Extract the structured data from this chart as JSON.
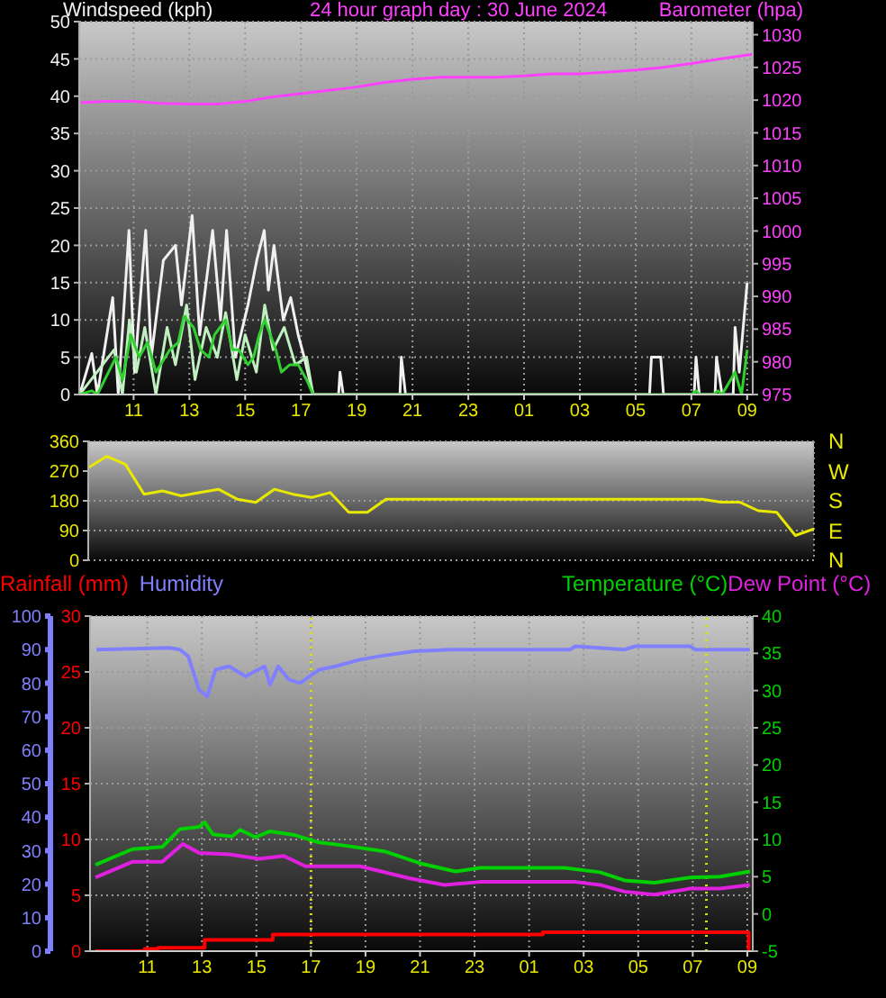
{
  "chart_data": [
    {
      "type": "line",
      "title": "24 hour graph day : 30 June 2024",
      "ylabel": "Windspeed (kph)",
      "y2label": "Barometer (hpa)",
      "xlim": [
        "2024-06-30T09:03",
        "2024-07-01T09:12"
      ],
      "xticks": [
        {
          "value": "2024-06-30T11:00",
          "label": "11"
        },
        {
          "value": "2024-06-30T13:00",
          "label": "13"
        },
        {
          "value": "2024-06-30T15:00",
          "label": "15"
        },
        {
          "value": "2024-06-30T17:00",
          "label": "17"
        },
        {
          "value": "2024-06-30T19:00",
          "label": "19"
        },
        {
          "value": "2024-06-30T21:00",
          "label": "21"
        },
        {
          "value": "2024-06-30T23:00",
          "label": "23"
        },
        {
          "value": "2024-07-01T01:00",
          "label": "01"
        },
        {
          "value": "2024-07-01T03:00",
          "label": "03"
        },
        {
          "value": "2024-07-01T05:00",
          "label": "05"
        },
        {
          "value": "2024-07-01T07:00",
          "label": "07"
        },
        {
          "value": "2024-07-01T09:00",
          "label": "09"
        }
      ],
      "ylim": [
        0,
        50
      ],
      "yticks": [
        0,
        5,
        10,
        15,
        20,
        25,
        30,
        35,
        40,
        45,
        50
      ],
      "y2lim": [
        975,
        1032
      ],
      "y2ticks": [
        975,
        980,
        985,
        990,
        995,
        1000,
        1005,
        1010,
        1015,
        1020,
        1025,
        1030
      ],
      "grid": true,
      "marker": "none",
      "line_style": "solid",
      "series": [
        {
          "color": "#f0f0f0",
          "x": [
            "2024-06-30T09:04",
            "2024-06-30T09:30",
            "2024-06-30T09:42",
            "2024-06-30T10:15",
            "2024-06-30T10:27",
            "2024-06-30T10:50",
            "2024-06-30T11:02",
            "2024-06-30T11:26",
            "2024-06-30T11:38",
            "2024-06-30T12:04",
            "2024-06-30T12:30",
            "2024-06-30T12:43",
            "2024-06-30T13:06",
            "2024-06-30T13:22",
            "2024-06-30T13:50",
            "2024-06-30T14:07",
            "2024-06-30T14:20",
            "2024-06-30T14:39",
            "2024-06-30T15:06",
            "2024-06-30T15:25",
            "2024-06-30T15:41",
            "2024-06-30T15:50",
            "2024-06-30T16:02",
            "2024-06-30T16:22",
            "2024-06-30T16:38",
            "2024-06-30T16:54",
            "2024-06-30T17:07",
            "2024-06-30T17:26",
            "2024-06-30T18:21",
            "2024-06-30T18:24",
            "2024-06-30T18:31",
            "2024-06-30T20:33",
            "2024-06-30T20:36",
            "2024-06-30T20:45",
            "2024-07-01T05:30",
            "2024-07-01T05:34",
            "2024-07-01T05:54",
            "2024-07-01T06:00",
            "2024-07-01T07:06",
            "2024-07-01T07:10",
            "2024-07-01T07:17",
            "2024-07-01T07:51",
            "2024-07-01T07:54",
            "2024-07-01T08:06",
            "2024-07-01T08:30",
            "2024-07-01T08:34",
            "2024-07-01T08:43",
            "2024-07-01T09:00"
          ],
          "values": [
            0,
            5.5,
            0,
            13,
            0,
            22,
            3,
            22,
            5,
            18,
            20,
            12,
            24,
            8,
            22,
            10,
            22,
            5,
            12,
            18,
            22,
            14,
            20,
            10,
            13,
            8,
            5,
            0,
            0,
            3,
            0,
            0,
            5,
            0,
            0,
            5,
            5,
            0,
            0,
            5,
            0,
            0,
            5,
            0,
            0,
            9,
            3,
            15
          ]
        },
        {
          "color": "#c0f0c0",
          "x": [
            "2024-06-30T09:04",
            "2024-06-30T10:18",
            "2024-06-30T10:36",
            "2024-06-30T10:51",
            "2024-06-30T11:06",
            "2024-06-30T11:24",
            "2024-06-30T11:48",
            "2024-06-30T12:12",
            "2024-06-30T12:30",
            "2024-06-30T12:54",
            "2024-06-30T13:12",
            "2024-06-30T13:36",
            "2024-06-30T14:00",
            "2024-06-30T14:18",
            "2024-06-30T14:42",
            "2024-06-30T15:00",
            "2024-06-30T15:24",
            "2024-06-30T15:42",
            "2024-06-30T16:00",
            "2024-06-30T16:24",
            "2024-06-30T16:48",
            "2024-06-30T17:12",
            "2024-06-30T17:26"
          ],
          "values": [
            0,
            6,
            0,
            10,
            3,
            9,
            0,
            9,
            4,
            12,
            2,
            9,
            5,
            11,
            2,
            8,
            3,
            12,
            6,
            9,
            4,
            5,
            0
          ]
        },
        {
          "color": "#30d030",
          "x": [
            "2024-06-30T09:04",
            "2024-06-30T09:30",
            "2024-06-30T09:42",
            "2024-06-30T10:22",
            "2024-06-30T10:36",
            "2024-06-30T10:54",
            "2024-06-30T11:12",
            "2024-06-30T11:30",
            "2024-06-30T11:48",
            "2024-06-30T12:18",
            "2024-06-30T12:36",
            "2024-06-30T12:48",
            "2024-06-30T13:09",
            "2024-06-30T13:24",
            "2024-06-30T13:42",
            "2024-06-30T13:54",
            "2024-06-30T14:18",
            "2024-06-30T14:33",
            "2024-06-30T14:46",
            "2024-06-30T15:06",
            "2024-06-30T15:18",
            "2024-06-30T15:30",
            "2024-06-30T15:42",
            "2024-06-30T15:54",
            "2024-06-30T16:06",
            "2024-06-30T16:18",
            "2024-06-30T16:36",
            "2024-06-30T16:54",
            "2024-06-30T17:12",
            "2024-06-30T17:26",
            "2024-07-01T07:00",
            "2024-07-01T07:10",
            "2024-07-01T07:18",
            "2024-07-01T07:48",
            "2024-07-01T07:57",
            "2024-07-01T08:06",
            "2024-07-01T08:34",
            "2024-07-01T08:48",
            "2024-07-01T09:00"
          ],
          "values": [
            0,
            0.5,
            0,
            5,
            2,
            8,
            5,
            7,
            3,
            6,
            7,
            10.5,
            9,
            6,
            5,
            8,
            10,
            6,
            6,
            4,
            5,
            8,
            10,
            8,
            6,
            3,
            4,
            4,
            2,
            0,
            0,
            0.5,
            0,
            0,
            0.5,
            0,
            3,
            0,
            6
          ]
        },
        {
          "color": "#ff40ff",
          "axis": "y2",
          "x": [
            "2024-06-30T09:06",
            "2024-06-30T10:00",
            "2024-06-30T11:00",
            "2024-06-30T12:00",
            "2024-06-30T13:00",
            "2024-06-30T14:00",
            "2024-06-30T15:00",
            "2024-06-30T16:00",
            "2024-06-30T17:00",
            "2024-06-30T18:00",
            "2024-06-30T19:00",
            "2024-06-30T20:00",
            "2024-06-30T21:00",
            "2024-06-30T22:00",
            "2024-06-30T23:00",
            "2024-07-01T00:00",
            "2024-07-01T01:00",
            "2024-07-01T02:00",
            "2024-07-01T03:00",
            "2024-07-01T04:00",
            "2024-07-01T05:00",
            "2024-07-01T06:00",
            "2024-07-01T07:00",
            "2024-07-01T08:00",
            "2024-07-01T09:12"
          ],
          "values": [
            1019.6,
            1019.8,
            1019.8,
            1019.5,
            1019.4,
            1019.4,
            1019.8,
            1020.5,
            1021,
            1021.5,
            1022,
            1022.7,
            1023.2,
            1023.5,
            1023.5,
            1023.5,
            1023.7,
            1024,
            1024,
            1024.3,
            1024.6,
            1025,
            1025.6,
            1026.3,
            1027
          ]
        }
      ]
    },
    {
      "type": "line",
      "tick_labels": "y",
      "categories": [
        null,
        null,
        null,
        null,
        null,
        null,
        null,
        null,
        null,
        null,
        null,
        null,
        null,
        null,
        null,
        null,
        null,
        null,
        null,
        null,
        null,
        null,
        null,
        null,
        null,
        null,
        null,
        null,
        null,
        null,
        null,
        null,
        null,
        null,
        null,
        null,
        null,
        null,
        null,
        null
      ],
      "ylim": [
        0,
        360
      ],
      "yticks": [
        0,
        90,
        180,
        270,
        360
      ],
      "annotations": [
        "N",
        "W",
        "S",
        "E",
        "N"
      ],
      "grid": true,
      "marker": "none",
      "line_style": "solid",
      "series": [
        {
          "color": "#e8e800",
          "values": [
            280,
            315,
            290,
            200,
            210,
            195,
            205,
            215,
            185,
            175,
            215,
            200,
            190,
            205,
            145,
            145,
            185,
            185,
            185,
            185,
            185,
            185,
            185,
            185,
            185,
            185,
            185,
            185,
            185,
            185,
            185,
            185,
            185,
            185,
            176,
            176,
            150,
            145,
            75,
            95
          ]
        }
      ]
    },
    {
      "type": "line",
      "legend": "top",
      "xlim": [
        "2024-06-30T08:54",
        "2024-07-01T09:12"
      ],
      "xticks": [
        {
          "value": "2024-06-30T11:00",
          "label": "11"
        },
        {
          "value": "2024-06-30T13:00",
          "label": "13"
        },
        {
          "value": "2024-06-30T15:00",
          "label": "15"
        },
        {
          "value": "2024-06-30T17:00",
          "label": "17"
        },
        {
          "value": "2024-06-30T19:00",
          "label": "19"
        },
        {
          "value": "2024-06-30T21:00",
          "label": "21"
        },
        {
          "value": "2024-06-30T23:00",
          "label": "23"
        },
        {
          "value": "2024-07-01T01:00",
          "label": "01"
        },
        {
          "value": "2024-07-01T03:00",
          "label": "03"
        },
        {
          "value": "2024-07-01T05:00",
          "label": "05"
        },
        {
          "value": "2024-07-01T07:00",
          "label": "07"
        },
        {
          "value": "2024-07-01T09:00",
          "label": "09"
        }
      ],
      "ylim": [
        0,
        30
      ],
      "yticks": [
        0,
        5,
        10,
        15,
        20,
        25,
        30
      ],
      "y3lim": [
        0,
        100
      ],
      "y3ticks": [
        0,
        10,
        20,
        30,
        40,
        50,
        60,
        70,
        80,
        90,
        100
      ],
      "y2lim": [
        -5,
        40
      ],
      "y2ticks": [
        -5,
        0,
        5,
        10,
        15,
        20,
        25,
        30,
        35,
        40
      ],
      "grid": true,
      "marker": "none",
      "line_style": "solid",
      "ref_lines": [
        {
          "axis": "x",
          "value": "2024-06-30T17:00",
          "color": "#e0e000",
          "line_style": "dotted"
        },
        {
          "axis": "x",
          "value": "2024-07-01T07:30",
          "color": "#e0e000",
          "line_style": "dotted"
        }
      ],
      "series": [
        {
          "name": "Rainfall (mm)",
          "type": "step",
          "color": "#ff0000",
          "x": [
            "2024-06-30T09:06",
            "2024-06-30T10:54",
            "2024-06-30T11:24",
            "2024-06-30T13:06",
            "2024-06-30T15:36",
            "2024-07-01T01:30",
            "2024-07-01T09:00",
            "2024-07-01T09:03"
          ],
          "values": [
            0,
            0.2,
            0.3,
            1.0,
            1.5,
            1.7,
            1.7,
            0
          ]
        },
        {
          "name": "Humidity",
          "axis": "y3",
          "color": "#8080ff",
          "x": [
            "2024-06-30T09:08",
            "2024-06-30T11:48",
            "2024-06-30T12:12",
            "2024-06-30T12:30",
            "2024-06-30T12:54",
            "2024-06-30T13:12",
            "2024-06-30T13:30",
            "2024-06-30T14:00",
            "2024-06-30T14:36",
            "2024-06-30T15:18",
            "2024-06-30T15:30",
            "2024-06-30T15:48",
            "2024-06-30T16:12",
            "2024-06-30T16:36",
            "2024-06-30T17:18",
            "2024-06-30T17:54",
            "2024-06-30T18:48",
            "2024-06-30T19:30",
            "2024-06-30T20:48",
            "2024-06-30T22:06",
            "2024-07-01T02:30",
            "2024-07-01T02:42",
            "2024-07-01T04:30",
            "2024-07-01T04:54",
            "2024-07-01T06:54",
            "2024-07-01T07:06",
            "2024-07-01T09:06"
          ],
          "values": [
            90,
            90.5,
            90,
            88,
            78,
            76,
            84,
            85,
            82,
            85,
            79.5,
            85,
            81,
            80,
            84,
            85,
            87,
            88,
            89.5,
            90,
            90,
            91,
            90,
            91,
            91,
            90,
            90
          ]
        },
        {
          "name": "Temperature (°C)",
          "axis": "y2",
          "color": "#00d000",
          "x": [
            "2024-06-30T09:06",
            "2024-06-30T10:27",
            "2024-06-30T11:33",
            "2024-06-30T12:12",
            "2024-06-30T12:54",
            "2024-06-30T13:06",
            "2024-06-30T13:24",
            "2024-06-30T14:06",
            "2024-06-30T14:24",
            "2024-06-30T14:58",
            "2024-06-30T15:30",
            "2024-06-30T16:24",
            "2024-06-30T17:18",
            "2024-06-30T18:12",
            "2024-06-30T19:42",
            "2024-06-30T21:00",
            "2024-06-30T22:18",
            "2024-06-30T23:12",
            "2024-07-01T02:18",
            "2024-07-01T03:36",
            "2024-07-01T04:30",
            "2024-07-01T05:36",
            "2024-07-01T06:54",
            "2024-07-01T08:00",
            "2024-07-01T09:06"
          ],
          "values": [
            6.6,
            8.7,
            9.0,
            11.4,
            11.7,
            12.3,
            10.7,
            10.4,
            11.3,
            10.3,
            11.1,
            10.6,
            9.6,
            9.2,
            8.4,
            6.8,
            5.7,
            6.2,
            6.2,
            5.6,
            4.5,
            4.2,
            4.9,
            5.0,
            5.7
          ]
        },
        {
          "name": "Dew Point (°C)",
          "axis": "y2",
          "color": "#e020e0",
          "x": [
            "2024-06-30T09:06",
            "2024-06-30T10:27",
            "2024-06-30T11:33",
            "2024-06-30T12:18",
            "2024-06-30T12:54",
            "2024-06-30T14:00",
            "2024-06-30T15:06",
            "2024-06-30T16:00",
            "2024-06-30T16:48",
            "2024-06-30T18:48",
            "2024-06-30T20:36",
            "2024-06-30T21:54",
            "2024-06-30T23:12",
            "2024-07-01T02:42",
            "2024-07-01T03:36",
            "2024-07-01T04:30",
            "2024-07-01T05:36",
            "2024-07-01T06:54",
            "2024-07-01T08:00",
            "2024-07-01T09:06"
          ],
          "values": [
            4.9,
            7.0,
            7.0,
            9.4,
            8.2,
            8.0,
            7.4,
            7.8,
            6.4,
            6.4,
            4.8,
            3.9,
            4.3,
            4.3,
            3.9,
            3.0,
            2.6,
            3.4,
            3.4,
            3.9
          ]
        }
      ]
    }
  ]
}
